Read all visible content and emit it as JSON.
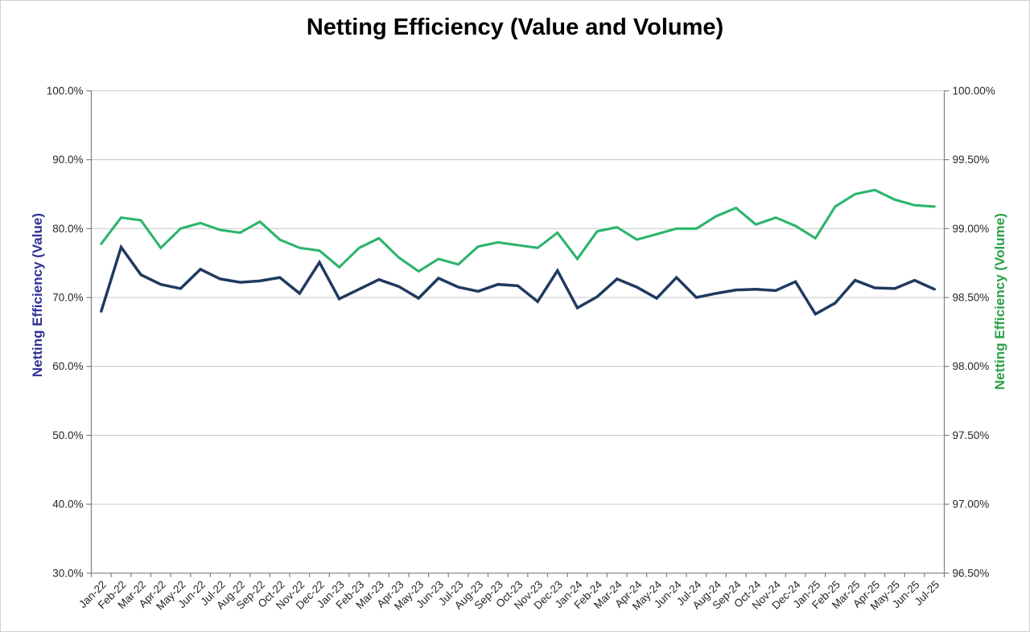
{
  "chart_data": {
    "type": "line",
    "title": "Netting Efficiency (Value and Volume)",
    "grid": true,
    "legend": "none",
    "categories": [
      "Jan-22",
      "Feb-22",
      "Mar-22",
      "Apr-22",
      "May-22",
      "Jun-22",
      "Jul-22",
      "Aug-22",
      "Sep-22",
      "Oct-22",
      "Nov-22",
      "Dec-22",
      "Jan-23",
      "Feb-23",
      "Mar-23",
      "Apr-23",
      "May-23",
      "Jun-23",
      "Jul-23",
      "Aug-23",
      "Sep-23",
      "Oct-23",
      "Nov-23",
      "Dec-23",
      "Jan-24",
      "Feb-24",
      "Mar-24",
      "Apr-24",
      "May-24",
      "Jun-24",
      "Jul-24",
      "Aug-24",
      "Sep-24",
      "Oct-24",
      "Nov-24",
      "Dec-24",
      "Jan-25",
      "Feb-25",
      "Mar-25",
      "Apr-25",
      "May-25",
      "Jun-25",
      "Jul-25"
    ],
    "left_axis": {
      "title": "Netting Efficiency (Value)",
      "color": "#2E3192",
      "min": 30,
      "max": 100,
      "ticks": [
        {
          "value": 100,
          "label": "100.0%"
        },
        {
          "value": 90,
          "label": "90.0%"
        },
        {
          "value": 80,
          "label": "80.0%"
        },
        {
          "value": 70,
          "label": "70.0%"
        },
        {
          "value": 60,
          "label": "60.0%"
        },
        {
          "value": 50,
          "label": "50.0%"
        },
        {
          "value": 40,
          "label": "40.0%"
        },
        {
          "value": 30,
          "label": "30.0%"
        }
      ]
    },
    "right_axis": {
      "title": "Netting Efficiency (Volume)",
      "color": "#2BA147",
      "min": 96.5,
      "max": 100,
      "ticks": [
        {
          "value": 100,
          "label": "100.00%"
        },
        {
          "value": 99.5,
          "label": "99.50%"
        },
        {
          "value": 99,
          "label": "99.00%"
        },
        {
          "value": 98.5,
          "label": "98.50%"
        },
        {
          "value": 98,
          "label": "98.00%"
        },
        {
          "value": 97.5,
          "label": "97.50%"
        },
        {
          "value": 97,
          "label": "97.00%"
        },
        {
          "value": 96.5,
          "label": "96.50%"
        }
      ]
    },
    "series": [
      {
        "name": "Netting Efficiency (Value)",
        "axis": "left",
        "color": "#1F3A60",
        "stroke_width": 3.5,
        "values": [
          68.0,
          77.3,
          73.3,
          71.9,
          71.3,
          74.1,
          72.7,
          72.2,
          72.4,
          72.9,
          70.6,
          75.1,
          69.8,
          71.2,
          72.6,
          71.6,
          69.9,
          72.8,
          71.5,
          70.9,
          71.9,
          71.7,
          69.4,
          73.9,
          68.5,
          70.1,
          72.7,
          71.5,
          69.9,
          72.9,
          70.0,
          70.6,
          71.1,
          71.2,
          71.0,
          72.3,
          67.6,
          69.2,
          72.5,
          71.4,
          71.3,
          72.5,
          71.2
        ]
      },
      {
        "name": "Netting Efficiency (Volume)",
        "axis": "right",
        "color": "#2CB46C",
        "stroke_width": 3.1,
        "values": [
          98.89,
          99.08,
          99.06,
          98.86,
          99.0,
          99.04,
          98.99,
          98.97,
          99.05,
          98.92,
          98.86,
          98.84,
          98.72,
          98.86,
          98.93,
          98.79,
          98.69,
          98.78,
          98.74,
          98.87,
          98.9,
          98.88,
          98.86,
          98.97,
          98.78,
          98.98,
          99.01,
          98.92,
          98.96,
          99.0,
          99.0,
          99.09,
          99.15,
          99.03,
          99.08,
          99.02,
          98.93,
          99.16,
          99.25,
          99.28,
          99.21,
          99.17,
          99.16
        ]
      }
    ],
    "colors": {
      "gridline": "#C6C6C6",
      "axis_line": "#7F7F7F",
      "tick_label": "#262626"
    }
  }
}
